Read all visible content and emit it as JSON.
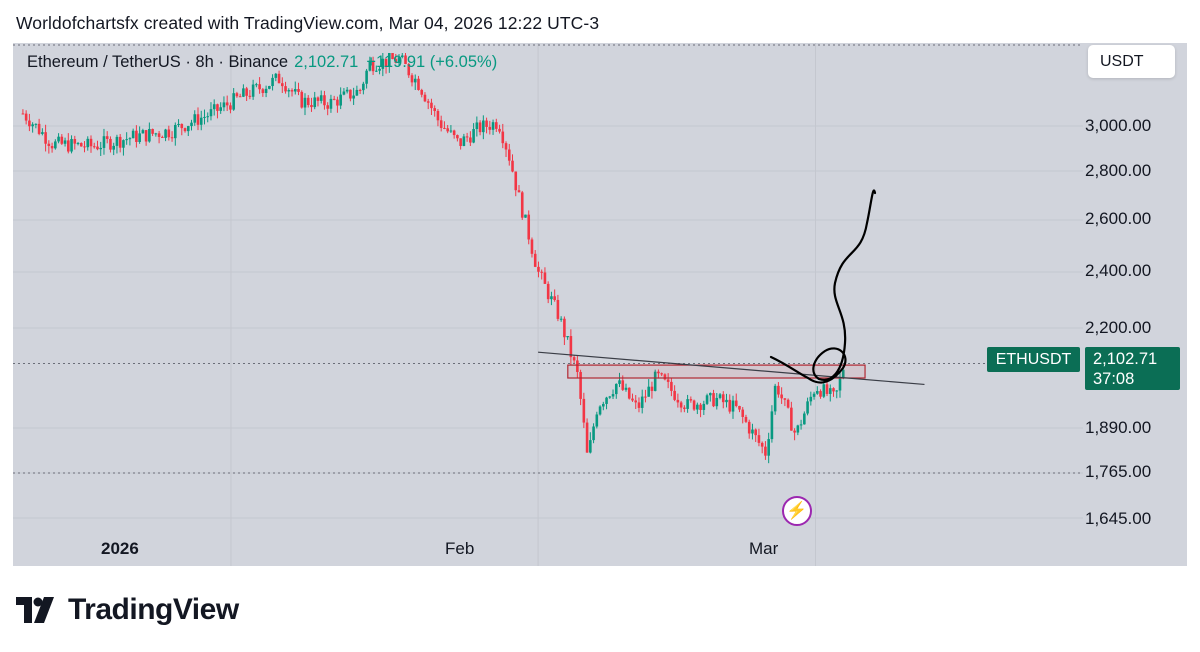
{
  "header": {
    "text": "Worldofchartsfx created with TradingView.com, Mar 04, 2026 12:22 UTC-3"
  },
  "legend": {
    "symbol_line": "Ethereum / TetherUS · 8h · Binance",
    "price": "2,102.71",
    "change": "+119.91 (+6.05%)"
  },
  "currency_button": {
    "label": "USDT"
  },
  "price_axis": {
    "labels": [
      "3,000.00",
      "2,800.00",
      "2,600.00",
      "2,400.00",
      "2,200.00",
      "1,890.00",
      "1,765.00",
      "1,645.00"
    ]
  },
  "last_price_tag": {
    "symbol": "ETHUSDT",
    "price": "2,102.71",
    "countdown": "37:08"
  },
  "time_axis": {
    "labels": [
      "2026",
      "Feb",
      "Mar"
    ]
  },
  "event_icon": "lightning-bolt-icon",
  "branding": {
    "logo_text": "TradingView"
  },
  "colors": {
    "up": "#089981",
    "down": "#f23645",
    "chart_bg": "#d1d4dc",
    "tag_bg": "#0b6e55",
    "event": "#9c27b0"
  },
  "chart_data": {
    "type": "candlestick",
    "symbol": "ETHUSDT",
    "timeframe": "8h",
    "exchange": "Binance",
    "close_series": [
      [
        "2025-12-11",
        3060
      ],
      [
        "2025-12-14",
        2920
      ],
      [
        "2025-12-18",
        2910
      ],
      [
        "2025-12-22",
        2950
      ],
      [
        "2025-12-26",
        2980
      ],
      [
        "2025-12-30",
        3060
      ],
      [
        "2026-01-02",
        3140
      ],
      [
        "2026-01-06",
        3230
      ],
      [
        "2026-01-08",
        3120
      ],
      [
        "2026-01-11",
        3110
      ],
      [
        "2026-01-14",
        3170
      ],
      [
        "2026-01-15",
        3300
      ],
      [
        "2026-01-18",
        3320
      ],
      [
        "2026-01-20",
        3200
      ],
      [
        "2026-01-22",
        3020
      ],
      [
        "2026-01-24",
        2920
      ],
      [
        "2026-01-26",
        2990
      ],
      [
        "2026-01-28",
        3020
      ],
      [
        "2026-01-29",
        2880
      ],
      [
        "2026-01-30",
        2700
      ],
      [
        "2026-02-01",
        2400
      ],
      [
        "2026-02-03",
        2250
      ],
      [
        "2026-02-05",
        2050
      ],
      [
        "2026-02-06",
        1800
      ],
      [
        "2026-02-07",
        1960
      ],
      [
        "2026-02-09",
        2030
      ],
      [
        "2026-02-11",
        1950
      ],
      [
        "2026-02-13",
        2050
      ],
      [
        "2026-02-16",
        1960
      ],
      [
        "2026-02-19",
        1980
      ],
      [
        "2026-02-21",
        1950
      ],
      [
        "2026-02-23",
        1860
      ],
      [
        "2026-02-24",
        1820
      ],
      [
        "2026-02-25",
        2030
      ],
      [
        "2026-02-27",
        1870
      ],
      [
        "2026-03-01",
        2020
      ],
      [
        "2026-03-03",
        1980
      ],
      [
        "2026-03-04",
        2102.71
      ]
    ],
    "reference_levels": [
      2090,
      1765
    ],
    "trendline": [
      [
        "2026-02-01",
        2125
      ],
      [
        "2026-03-12",
        2025
      ]
    ],
    "box": {
      "from": "2026-02-04",
      "to": "2026-03-06",
      "top": 2085,
      "bottom": 2045
    },
    "projection_drawing": [
      [
        "2026-03-05",
        2090
      ],
      [
        "2026-03-07",
        2050
      ],
      [
        "2026-03-09",
        2060
      ],
      [
        "2026-03-11",
        2250
      ],
      [
        "2026-03-14",
        2500
      ],
      [
        "2026-03-15",
        2700
      ]
    ],
    "ylim": [
      1600,
      3350
    ],
    "xlim": [
      "2025-12-10",
      "2026-03-28"
    ]
  }
}
